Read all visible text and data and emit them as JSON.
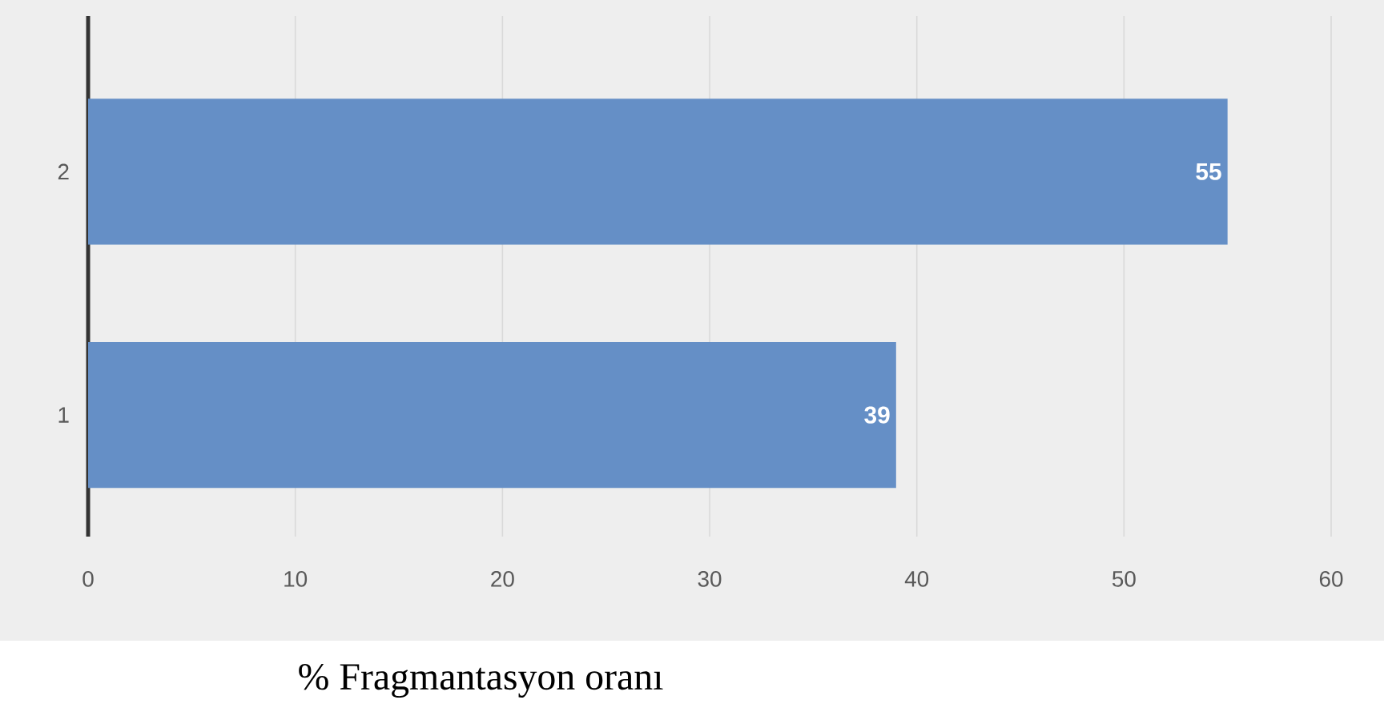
{
  "chart_data": {
    "type": "bar",
    "orientation": "horizontal",
    "xlabel": "% Fragmantasyon oranı",
    "categories": [
      "2",
      "1"
    ],
    "values": [
      55,
      39
    ],
    "color": "#658fc6",
    "xlim": [
      0,
      60
    ],
    "xticks": [
      0,
      10,
      20,
      30,
      40,
      50,
      60
    ],
    "grid": "x",
    "data_labels": true
  }
}
